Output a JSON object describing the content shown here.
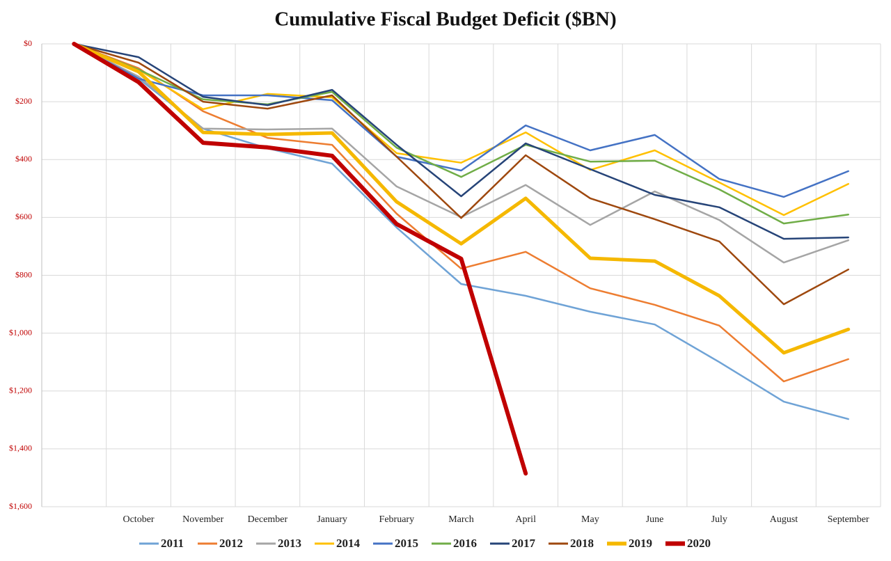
{
  "chart_data": {
    "type": "line",
    "title": "Cumulative Fiscal Budget Deficit ($BN)",
    "categories": [
      null,
      "October",
      "November",
      "December",
      "January",
      "February",
      "March",
      "April",
      "May",
      "June",
      "July",
      "August",
      "September"
    ],
    "ylim": [
      0,
      1600
    ],
    "y_inverted": true,
    "yticks": [
      {
        "value": 0,
        "label": "$0"
      },
      {
        "value": 200,
        "label": "$200"
      },
      {
        "value": 400,
        "label": "$400"
      },
      {
        "value": 600,
        "label": "$600"
      },
      {
        "value": 800,
        "label": "$800"
      },
      {
        "value": 1000,
        "label": "$1,000"
      },
      {
        "value": 1200,
        "label": "$1,200"
      },
      {
        "value": 1400,
        "label": "$1,400"
      },
      {
        "value": 1600,
        "label": "$1,600"
      }
    ],
    "grid": true,
    "legend": "bottom",
    "series": [
      {
        "name": "2011",
        "color": "#6fa3d6",
        "values": [
          0,
          120,
          293,
          361,
          414,
          635,
          830,
          871,
          926,
          970,
          1100,
          1237,
          1297
        ]
      },
      {
        "name": "2012",
        "color": "#ed7d31",
        "values": [
          0,
          84,
          233,
          325,
          349,
          587,
          777,
          719,
          845,
          902,
          974,
          1167,
          1090
        ]
      },
      {
        "name": "2013",
        "color": "#a5a5a5",
        "values": [
          0,
          113,
          293,
          296,
          293,
          493,
          599,
          488,
          626,
          510,
          609,
          756,
          679
        ]
      },
      {
        "name": "2014",
        "color": "#ffc000",
        "values": [
          0,
          89,
          226,
          173,
          185,
          378,
          411,
          306,
          436,
          368,
          479,
          592,
          484
        ]
      },
      {
        "name": "2015",
        "color": "#4472c4",
        "values": [
          0,
          120,
          178,
          178,
          195,
          390,
          438,
          282,
          368,
          315,
          467,
          529,
          440
        ]
      },
      {
        "name": "2016",
        "color": "#70ad47",
        "values": [
          0,
          89,
          192,
          209,
          166,
          359,
          460,
          349,
          407,
          404,
          503,
          621,
          590
        ]
      },
      {
        "name": "2017",
        "color": "#264478",
        "values": [
          0,
          46,
          183,
          212,
          159,
          349,
          527,
          344,
          433,
          522,
          565,
          674,
          669
        ]
      },
      {
        "name": "2018",
        "color": "#9e480e",
        "values": [
          0,
          65,
          200,
          224,
          178,
          390,
          602,
          385,
          534,
          606,
          683,
          900,
          780
        ]
      },
      {
        "name": "2019",
        "color": "#f5b800",
        "values": [
          0,
          96,
          306,
          313,
          308,
          546,
          691,
          534,
          741,
          751,
          871,
          1068,
          987
        ]
      },
      {
        "name": "2020",
        "color": "#c00000",
        "values": [
          0,
          132,
          342,
          358,
          387,
          623,
          743,
          1485,
          null,
          null,
          null,
          null,
          null
        ]
      }
    ]
  }
}
